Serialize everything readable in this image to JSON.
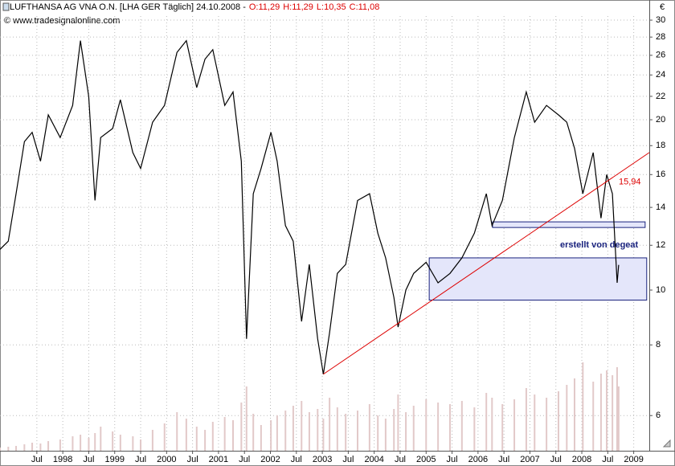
{
  "chart_data": {
    "type": "line",
    "title": "LUFTHANSA AG VNA O.N. [LHA GER  Täglich] 24.10.2008 -",
    "ohlc": [
      "O:11,29",
      "H:11,29",
      "L:10,35",
      "C:11,08"
    ],
    "source": "© www.tradesignalonline.com",
    "currency": "€",
    "log_scale": true,
    "grid": true,
    "color": "#000000",
    "x": [
      1996.79,
      1996.95,
      1997.1,
      1997.26,
      1997.41,
      1997.57,
      1997.72,
      1997.95,
      1998.19,
      1998.34,
      1998.5,
      1998.62,
      1998.73,
      1998.96,
      1999.11,
      1999.35,
      1999.5,
      1999.73,
      1999.96,
      2000.2,
      2000.38,
      2000.58,
      2000.74,
      2000.89,
      2001.12,
      2001.28,
      2001.44,
      2001.54,
      2001.67,
      2001.82,
      2002.01,
      2002.13,
      2002.29,
      2002.44,
      2002.6,
      2002.75,
      2002.91,
      2003.02,
      2003.14,
      2003.29,
      2003.45,
      2003.68,
      2003.91,
      2004.07,
      2004.22,
      2004.38,
      2004.46,
      2004.61,
      2004.76,
      2005.0,
      2005.23,
      2005.46,
      2005.69,
      2005.93,
      2006.16,
      2006.27,
      2006.47,
      2006.7,
      2006.93,
      2007.09,
      2007.32,
      2007.55,
      2007.71,
      2007.86,
      2008.02,
      2008.22,
      2008.37,
      2008.48,
      2008.59,
      2008.68,
      2008.71
    ],
    "values": [
      11.8,
      12.2,
      14.8,
      18.3,
      19.0,
      16.9,
      20.4,
      18.6,
      21.2,
      27.6,
      22.0,
      14.4,
      18.6,
      19.3,
      21.7,
      17.5,
      16.4,
      19.8,
      21.2,
      26.3,
      27.6,
      22.8,
      25.6,
      26.6,
      21.2,
      22.4,
      16.9,
      8.2,
      14.8,
      16.4,
      19.0,
      16.9,
      13.0,
      12.2,
      8.8,
      11.1,
      8.2,
      7.1,
      8.4,
      10.7,
      11.1,
      14.4,
      14.8,
      12.6,
      11.4,
      9.7,
      8.6,
      10.0,
      10.7,
      11.2,
      10.3,
      10.7,
      11.4,
      12.6,
      14.8,
      13.0,
      14.4,
      18.6,
      22.4,
      19.8,
      21.2,
      20.4,
      19.8,
      17.8,
      14.8,
      17.5,
      13.4,
      16.0,
      14.8,
      10.3,
      11.08
    ],
    "volume": {
      "color": "#e2c9c9",
      "values": [
        4,
        5,
        6,
        8,
        10,
        9,
        12,
        14,
        18,
        20,
        16,
        22,
        30,
        24,
        20,
        18,
        14,
        26,
        34,
        48,
        40,
        30,
        26,
        36,
        42,
        38,
        60,
        80,
        46,
        32,
        38,
        44,
        50,
        56,
        62,
        48,
        52,
        40,
        66,
        54,
        46,
        50,
        58,
        44,
        40,
        52,
        70,
        48,
        56,
        64,
        60,
        58,
        62,
        54,
        72,
        66,
        58,
        64,
        78,
        70,
        66,
        74,
        82,
        90,
        110,
        86,
        96,
        100,
        94,
        104,
        80
      ]
    },
    "trendline": {
      "color": "#dd0000",
      "x": [
        2003.02,
        2009.3
      ],
      "values": [
        7.1,
        17.5
      ],
      "label": {
        "value": 15.94,
        "label": "15,94"
      }
    },
    "zones": [
      {
        "x": [
          2006.28,
          2009.22
        ],
        "values": [
          12.9,
          13.2
        ]
      },
      {
        "x": [
          2005.06,
          2009.25
        ],
        "values": [
          9.6,
          11.4
        ]
      }
    ],
    "annotation": "erstellt von degeat",
    "xlim": [
      1996.79,
      2009.3
    ],
    "ylim": [
      5.2,
      30.5
    ],
    "yticks": [
      6,
      8,
      10,
      12,
      14,
      16,
      18,
      20,
      22,
      24,
      26,
      28,
      30
    ],
    "xticks": [
      {
        "value": 1997.5,
        "label": "Jul"
      },
      {
        "value": 1998,
        "label": "1998"
      },
      {
        "value": 1998.5,
        "label": "Jul"
      },
      {
        "value": 1999,
        "label": "1999"
      },
      {
        "value": 1999.5,
        "label": "Jul"
      },
      {
        "value": 2000,
        "label": "2000"
      },
      {
        "value": 2000.5,
        "label": "Jul"
      },
      {
        "value": 2001,
        "label": "2001"
      },
      {
        "value": 2001.5,
        "label": "Jul"
      },
      {
        "value": 2002,
        "label": "2002"
      },
      {
        "value": 2002.5,
        "label": "Jul"
      },
      {
        "value": 2003,
        "label": "2003"
      },
      {
        "value": 2003.5,
        "label": "Jul"
      },
      {
        "value": 2004,
        "label": "2004"
      },
      {
        "value": 2004.5,
        "label": "Jul"
      },
      {
        "value": 2005,
        "label": "2005"
      },
      {
        "value": 2005.5,
        "label": "Jul"
      },
      {
        "value": 2006,
        "label": "2006"
      },
      {
        "value": 2006.5,
        "label": "Jul"
      },
      {
        "value": 2007,
        "label": "2007"
      },
      {
        "value": 2007.5,
        "label": "Jul"
      },
      {
        "value": 2008,
        "label": "2008"
      },
      {
        "value": 2008.5,
        "label": "Jul"
      },
      {
        "value": 2009,
        "label": "2009"
      }
    ]
  }
}
